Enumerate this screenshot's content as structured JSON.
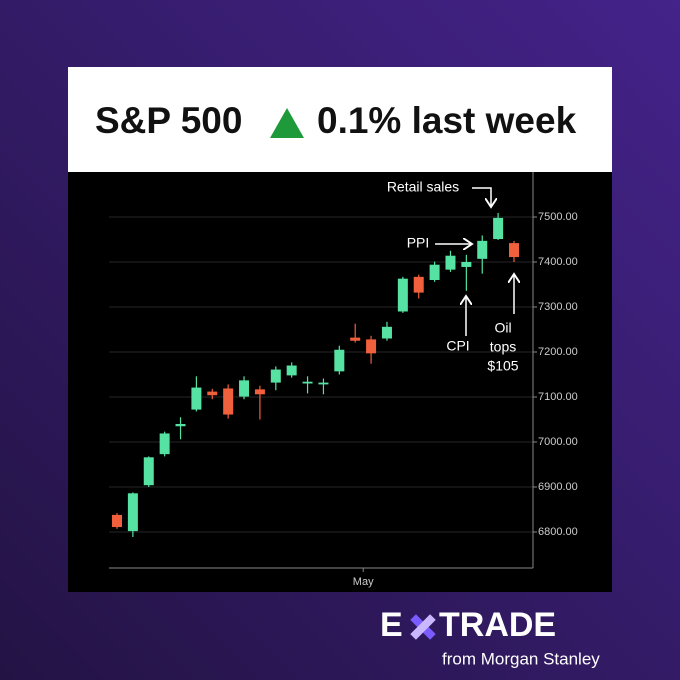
{
  "chart_data": {
    "type": "candlestick",
    "title": "S&P 500",
    "title_change": "0.1% last week",
    "categories": [
      null,
      null,
      null,
      null,
      null,
      null,
      null,
      null,
      null,
      null,
      null,
      null,
      null,
      null,
      null,
      "May",
      null,
      null,
      null,
      null,
      null,
      null,
      null,
      null,
      null,
      null
    ],
    "open": [
      6838,
      6802,
      6904,
      6973,
      7035,
      7072,
      7112,
      7119,
      7101,
      7117,
      7132,
      7148,
      7130,
      7128,
      7157,
      7232,
      7228,
      7230,
      7290,
      7367,
      7360,
      7383,
      7389,
      7407,
      7451,
      7442
    ],
    "high": [
      6842,
      6888,
      6968,
      7023,
      7055,
      7146,
      7118,
      7128,
      7146,
      7125,
      7168,
      7177,
      7146,
      7141,
      7214,
      7263,
      7236,
      7267,
      7367,
      7372,
      7401,
      7425,
      7416,
      7459,
      7509,
      7447
    ],
    "low": [
      6807,
      6789,
      6900,
      6968,
      7006,
      7068,
      7095,
      7052,
      7095,
      7050,
      7115,
      7143,
      7108,
      7106,
      7150,
      7221,
      7174,
      7225,
      7287,
      7319,
      7356,
      7378,
      7336,
      7374,
      7449,
      7400
    ],
    "close": [
      6811,
      6886,
      6966,
      7019,
      7040,
      7121,
      7104,
      7061,
      7137,
      7106,
      7161,
      7170,
      7134,
      7132,
      7205,
      7225,
      7197,
      7256,
      7363,
      7332,
      7394,
      7414,
      7400,
      7447,
      7498,
      7411
    ],
    "up_color": "#56e2a2",
    "down_color": "#f0603c",
    "ylim": [
      6720,
      7600
    ],
    "yticks": [
      {
        "value": 6800,
        "label": "6800.00"
      },
      {
        "value": 6900,
        "label": "6900.00"
      },
      {
        "value": 7000,
        "label": "7000.00"
      },
      {
        "value": 7100,
        "label": "7100.00"
      },
      {
        "value": 7200,
        "label": "7200.00"
      },
      {
        "value": 7300,
        "label": "7300.00"
      },
      {
        "value": 7400,
        "label": "7400.00"
      },
      {
        "value": 7500,
        "label": "7500.00"
      }
    ],
    "grid": true,
    "annotations": {
      "retail": "Retail sales",
      "ppi": "PPI",
      "cpi": "CPI",
      "oil": [
        "Oil",
        "tops",
        "$105"
      ]
    }
  },
  "brand": {
    "logo_left": "E",
    "logo_right": "TRADE",
    "tagline": "from Morgan Stanley"
  }
}
